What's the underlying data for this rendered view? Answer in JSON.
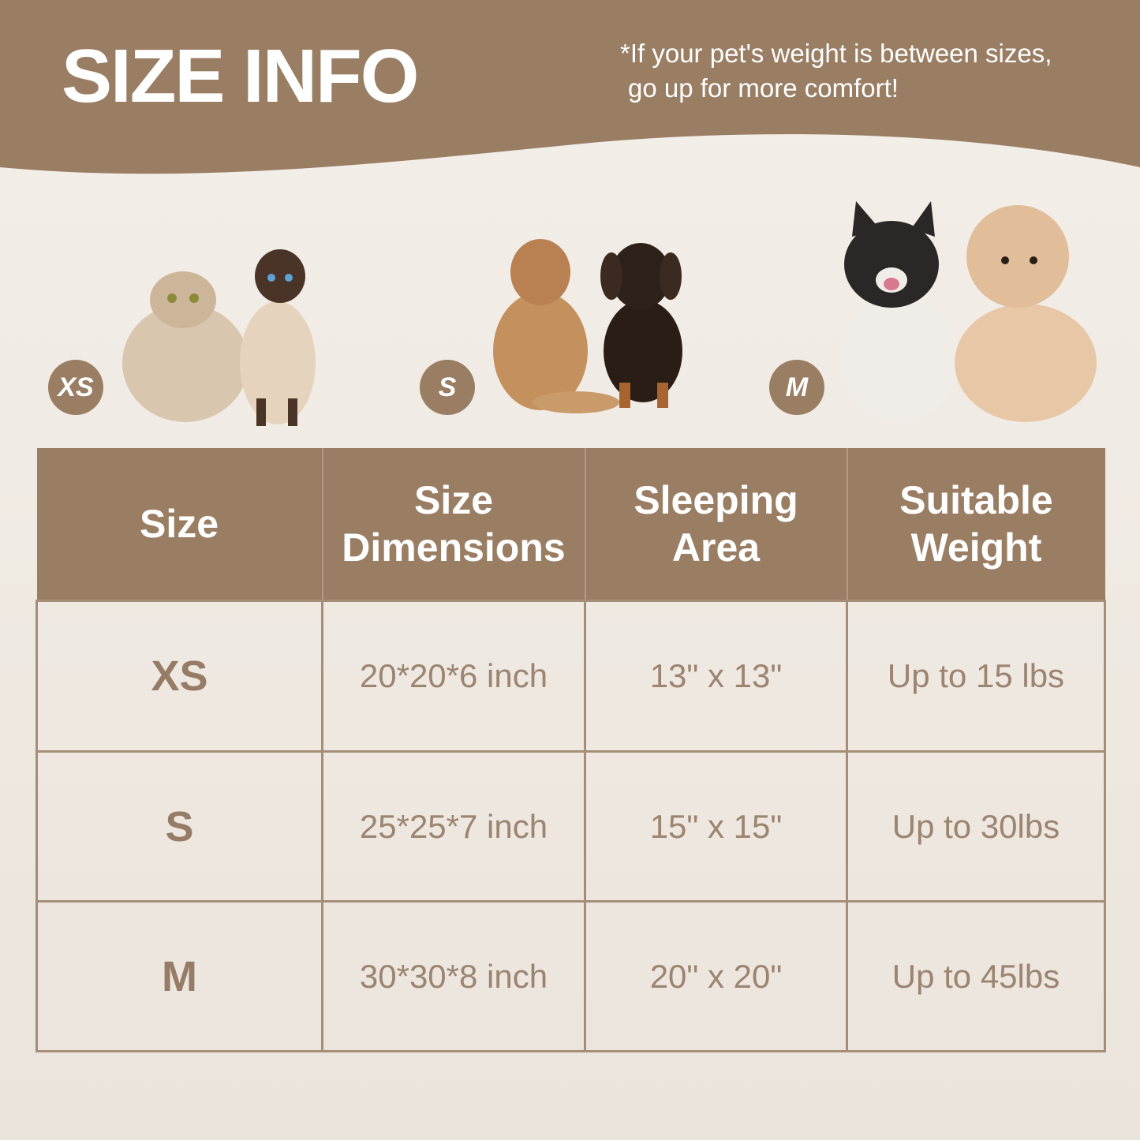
{
  "header": {
    "title": "SIZE INFO",
    "note_line1": "*If your pet's weight is between sizes,",
    "note_line2": "go up for more comfort!"
  },
  "colors": {
    "brand_brown": "#9a7e64",
    "background": "#ede6de",
    "text_brown": "#9b8470"
  },
  "badges": [
    "XS",
    "S",
    "M"
  ],
  "table": {
    "headers": [
      "Size",
      "Size Dimensions",
      "Sleeping Area",
      "Suitable Weight"
    ],
    "rows": [
      {
        "size": "XS",
        "dimensions": "20*20*6 inch",
        "sleeping_area": "13\" x 13\"",
        "weight": "Up to 15 lbs"
      },
      {
        "size": "S",
        "dimensions": "25*25*7 inch",
        "sleeping_area": "15\" x 15\"",
        "weight": "Up to 30lbs"
      },
      {
        "size": "M",
        "dimensions": "30*30*8 inch",
        "sleeping_area": "20\" x 20\"",
        "weight": "Up to 45lbs"
      }
    ]
  }
}
